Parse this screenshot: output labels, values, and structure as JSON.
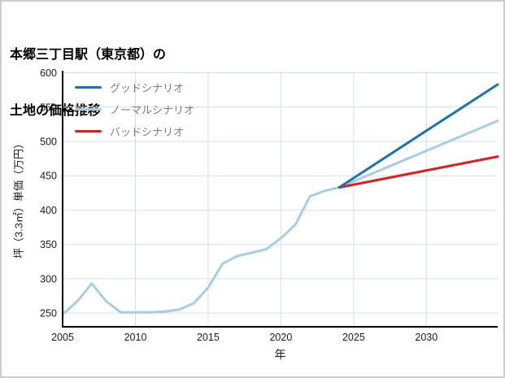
{
  "title": {
    "line1": "本郷三丁目駅（東京都）の",
    "line2": "土地の価格推移"
  },
  "chart_data": {
    "type": "line",
    "title": "本郷三丁目駅（東京都）の土地の価格推移",
    "xlabel": "年",
    "ylabel": "坪（3.3㎡）単価（万円）",
    "xlim": [
      2005,
      2034.9
    ],
    "ylim": [
      230,
      603
    ],
    "xticks": [
      2005,
      2010,
      2015,
      2020,
      2025,
      2030
    ],
    "yticks": [
      250,
      300,
      350,
      400,
      450,
      500,
      550,
      600
    ],
    "grid": true,
    "grid_color": "#d6dfe8",
    "axis_color": "#000000",
    "legend_position": "top-left",
    "draw_order": [
      1,
      2,
      0
    ],
    "series": [
      {
        "name": "グッドシナリオ",
        "key": "good-scenario",
        "color": "#1a72b8",
        "x": [
          2024,
          2034.9
        ],
        "values": [
          433,
          583
        ]
      },
      {
        "name": "ノーマルシナリオ",
        "key": "normal-scenario",
        "color": "#a6cee3",
        "x": [
          2005,
          2006,
          2007,
          2008,
          2009,
          2010,
          2011,
          2012,
          2013,
          2014,
          2015,
          2016,
          2017,
          2018,
          2019,
          2020,
          2021,
          2022,
          2023,
          2024,
          2034.9
        ],
        "values": [
          248,
          267,
          293,
          267,
          251,
          251,
          251,
          252,
          255,
          264,
          287,
          322,
          333,
          338,
          343,
          359,
          379,
          420,
          428,
          433,
          530
        ]
      },
      {
        "name": "バッドシナリオ",
        "key": "bad-scenario",
        "color": "#e41a1c",
        "x": [
          2024,
          2034.9
        ],
        "values": [
          433,
          478
        ]
      }
    ]
  }
}
